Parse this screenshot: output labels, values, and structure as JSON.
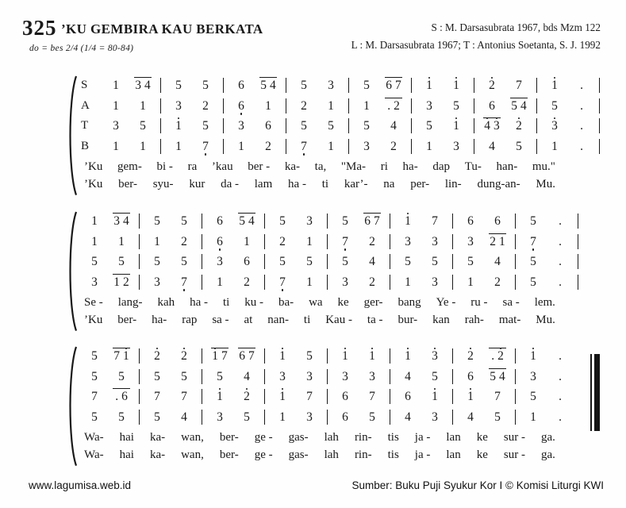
{
  "page": {
    "number": "325",
    "title": "’KU GEMBIRA KAU BERKATA",
    "tempo": "do = bes   2/4   (1/4 = 80-84)",
    "credit_line1": "S : M. Darsasubrata 1967, bds Mzm 122",
    "credit_line2": "L : M. Darsasubrata 1967; T : Antonius Soetanta, S. J. 1992",
    "footer_left": "www.lagumisa.web.id",
    "footer_right": "Sumber: Buku Puji Syukur Kor I © Komisi Liturgi KWI"
  },
  "notation_note": "Cipher (number) notation. In row strings: tokens separated by spaces are beats, | is a barline, ' = octave dot above, , = octave dot below, multi-character beats are grouped under an overline, . is a duration dot.",
  "systems": [
    {
      "voice_labels": [
        "S",
        "A",
        "T",
        "B"
      ],
      "rows": [
        "1 34 | 5 5 | 6 54 | 5 3 | 5 67 | 1' 1' | 2' 7 | 1' . |",
        "1 1 | 3 2 | 6, 1 | 2 1 | 1 .2 | 3 5 | 6 54 | 5 . |",
        "3 5 | 1' 5 | 3 6 | 5 5 | 5 4 | 5 1' | 4'3' 2' | 3' . |",
        "1 1 | 1 7, | 1 2 | 7, 1 | 3 2 | 1 3 | 4 5 | 1 . |"
      ],
      "lyrics": [
        [
          "’Ku",
          "gem-",
          "bi -",
          "ra",
          "’kau",
          "ber -",
          "ka-",
          "ta,",
          "\"Ma-",
          "ri",
          "ha-",
          "dap",
          "Tu-",
          "han-",
          "mu.\""
        ],
        [
          "’Ku",
          "ber-",
          "syu-",
          "kur",
          "da -",
          "lam",
          "ha -",
          "ti",
          "kar’-",
          "na",
          "per-",
          "lin-",
          "dung-an-",
          "Mu."
        ]
      ]
    },
    {
      "voice_labels": null,
      "rows": [
        "1 34 | 5 5 | 6 54 | 5 3 | 5 67 | 1' 7 | 6 6 | 5 . |",
        "1 1 | 1 2 | 6, 1 | 2 1 | 7, 2 | 3 3 | 3 21 | 7, . |",
        "5 5 | 5 5 | 3 6 | 5 5 | 5 4 | 5 5 | 5 4 | 5 . |",
        "3 12 | 3 7, | 1 2 | 7, 1 | 3 2 | 1 3 | 1 2 | 5 . |"
      ],
      "lyrics": [
        [
          "Se -",
          "lang-",
          "kah",
          "ha -",
          "ti",
          "ku -",
          "ba-",
          "wa",
          "ke",
          "ger-",
          "bang",
          "Ye -",
          "ru -",
          "sa -",
          "lem."
        ],
        [
          "’Ku",
          "ber-",
          "ha-",
          "rap",
          "sa -",
          "at",
          "nan-",
          "ti",
          "Kau -",
          "ta -",
          "bur-",
          "kan",
          "rah-",
          "mat-",
          "Mu."
        ]
      ]
    },
    {
      "voice_labels": null,
      "final_double_bar": true,
      "rows": [
        "5 71' | 2' 2' | 1'7 67 | 1' 5 | 1' 1' | 1' 3' | 2' .2' | 1' .",
        "5 5 | 5 5 | 5 4 | 3 3 | 3 3 | 4 5 | 6 54 | 3 .",
        "7 .6 | 7 7 | 1' 2' | 1' 7 | 6 7 | 6 1' | 1' 7 | 5 .",
        "5 5 | 5 4 | 3 5 | 1 3 | 6 5 | 4 3 | 4 5 | 1 ."
      ],
      "lyrics": [
        [
          "Wa-",
          "hai",
          "ka-",
          "wan,",
          "ber-",
          "ge -",
          "gas-",
          "lah",
          "rin-",
          "tis",
          "ja -",
          "lan",
          "ke",
          "sur -",
          "ga."
        ],
        [
          "Wa-",
          "hai",
          "ka-",
          "wan,",
          "ber-",
          "ge -",
          "gas-",
          "lah",
          "rin-",
          "tis",
          "ja -",
          "lan",
          "ke",
          "sur -",
          "ga."
        ]
      ]
    }
  ]
}
